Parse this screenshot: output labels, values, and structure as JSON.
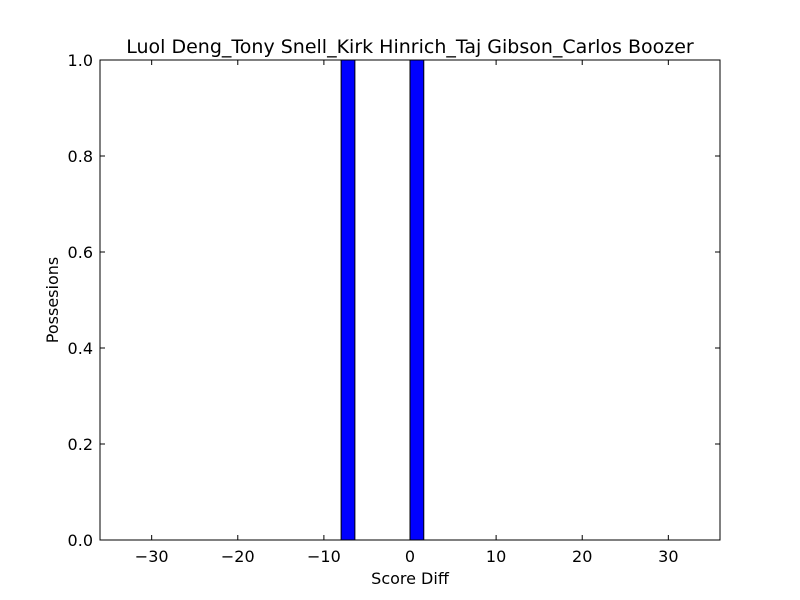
{
  "chart_data": {
    "type": "bar",
    "title": "Luol Deng_Tony Snell_Kirk Hinrich_Taj Gibson_Carlos Boozer",
    "xlabel": "Score Diff",
    "ylabel": "Possesions",
    "xlim": [
      -36,
      36
    ],
    "ylim": [
      0,
      1.0
    ],
    "xticks": [
      -30,
      -20,
      -10,
      0,
      10,
      20,
      30
    ],
    "xtick_labels": [
      "−30",
      "−20",
      "−10",
      "0",
      "10",
      "20",
      "30"
    ],
    "yticks": [
      0.0,
      0.2,
      0.4,
      0.6,
      0.8,
      1.0
    ],
    "ytick_labels": [
      "0.0",
      "0.2",
      "0.4",
      "0.6",
      "0.8",
      "1.0"
    ],
    "bar_width": 1.6,
    "bars": [
      {
        "x": -8,
        "value": 1.0
      },
      {
        "x": 0,
        "value": 1.0
      }
    ],
    "bar_color": "#0000ff",
    "bar_edge_color": "#000000",
    "grid": false,
    "legend": "none"
  }
}
